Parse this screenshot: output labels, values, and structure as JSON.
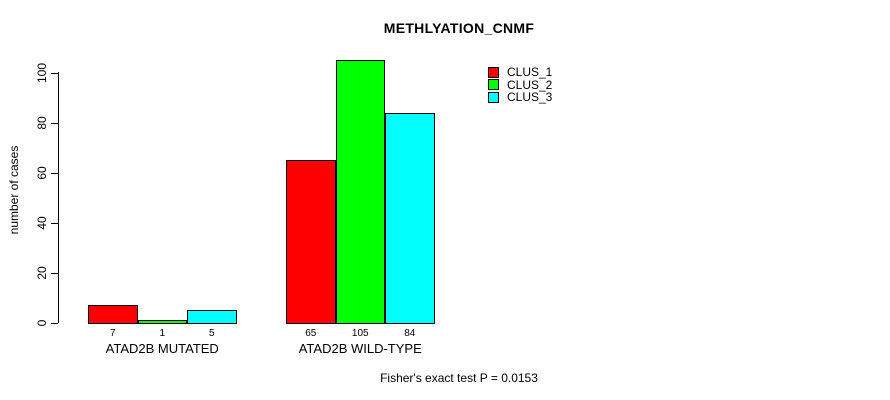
{
  "chart_data": {
    "type": "bar",
    "title": "METHLYATION_CNMF",
    "xlabel": "",
    "ylabel": "number of cases",
    "categories": [
      "ATAD2B MUTATED",
      "ATAD2B WILD-TYPE"
    ],
    "series": [
      {
        "name": "CLUS_1",
        "color": "#ff0000",
        "values": [
          7,
          65
        ]
      },
      {
        "name": "CLUS_2",
        "color": "#00ff00",
        "values": [
          1,
          105
        ]
      },
      {
        "name": "CLUS_3",
        "color": "#00ffff",
        "values": [
          5,
          84
        ]
      }
    ],
    "bar_value_labels": [
      [
        "7",
        "1",
        "5"
      ],
      [
        "65",
        "105",
        "84"
      ]
    ],
    "yticks": [
      0,
      20,
      40,
      60,
      80,
      100
    ],
    "ylim": [
      0,
      105
    ],
    "grid": false,
    "legend_position": "top-right-inside",
    "bar_border_color": "#000000"
  },
  "annotation": {
    "footnote": "Fisher's exact test P = 0.0153"
  }
}
